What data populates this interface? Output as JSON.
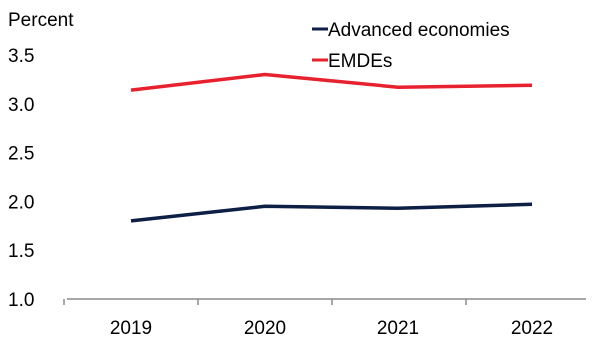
{
  "chart_data": {
    "type": "line",
    "title": "",
    "xlabel": "",
    "ylabel": "Percent",
    "categories": [
      "2019",
      "2020",
      "2021",
      "2022"
    ],
    "ylim": [
      1.0,
      3.5
    ],
    "yticks": [
      "1.0",
      "1.5",
      "2.0",
      "2.5",
      "3.0",
      "3.5"
    ],
    "grid": false,
    "legend_position": "top-right",
    "series": [
      {
        "name": "Advanced economies",
        "color": "#0d1f45",
        "values": [
          1.8,
          1.95,
          1.93,
          1.97
        ]
      },
      {
        "name": "EMDEs",
        "color": "#e8212e",
        "values": [
          3.14,
          3.3,
          3.17,
          3.19
        ]
      }
    ]
  }
}
